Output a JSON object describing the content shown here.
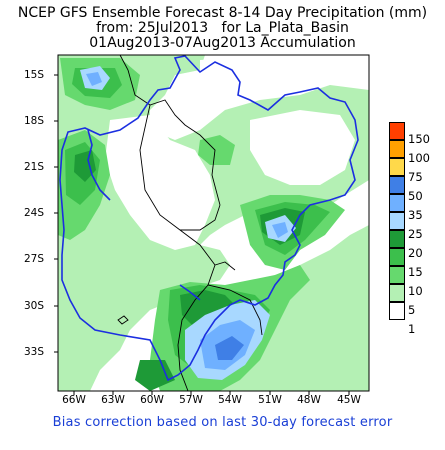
{
  "title": {
    "line1": "NCEP GFS Ensemble Forecast 8-14 Day Precipitation (mm)",
    "line2": "from: 25Jul2013   for La_Plata_Basin",
    "line3": "01Aug2013-07Aug2013 Accumulation"
  },
  "footer": "Bias correction based on last 30-day forecast error",
  "axes": {
    "lat_ticks": [
      "15S",
      "18S",
      "21S",
      "24S",
      "27S",
      "30S",
      "33S"
    ],
    "lon_ticks": [
      "66W",
      "63W",
      "60W",
      "57W",
      "54W",
      "51W",
      "48W",
      "45W"
    ]
  },
  "legend": [
    {
      "label": "150",
      "color": "#ff3f00"
    },
    {
      "label": "100",
      "color": "#ffa000"
    },
    {
      "label": "75",
      "color": "#ffd94a"
    },
    {
      "label": "50",
      "color": "#3f7fe6"
    },
    {
      "label": "35",
      "color": "#6fb0ff"
    },
    {
      "label": "25",
      "color": "#a8d8ff"
    },
    {
      "label": "20",
      "color": "#1e9a37"
    },
    {
      "label": "15",
      "color": "#3cbf4c"
    },
    {
      "label": "10",
      "color": "#66d96e"
    },
    {
      "label": "5",
      "color": "#b4f0b4"
    },
    {
      "label": "1",
      "color": "#ffffff"
    }
  ],
  "colors": {
    "boundary": "#1b2fe0",
    "border": "#000000"
  }
}
